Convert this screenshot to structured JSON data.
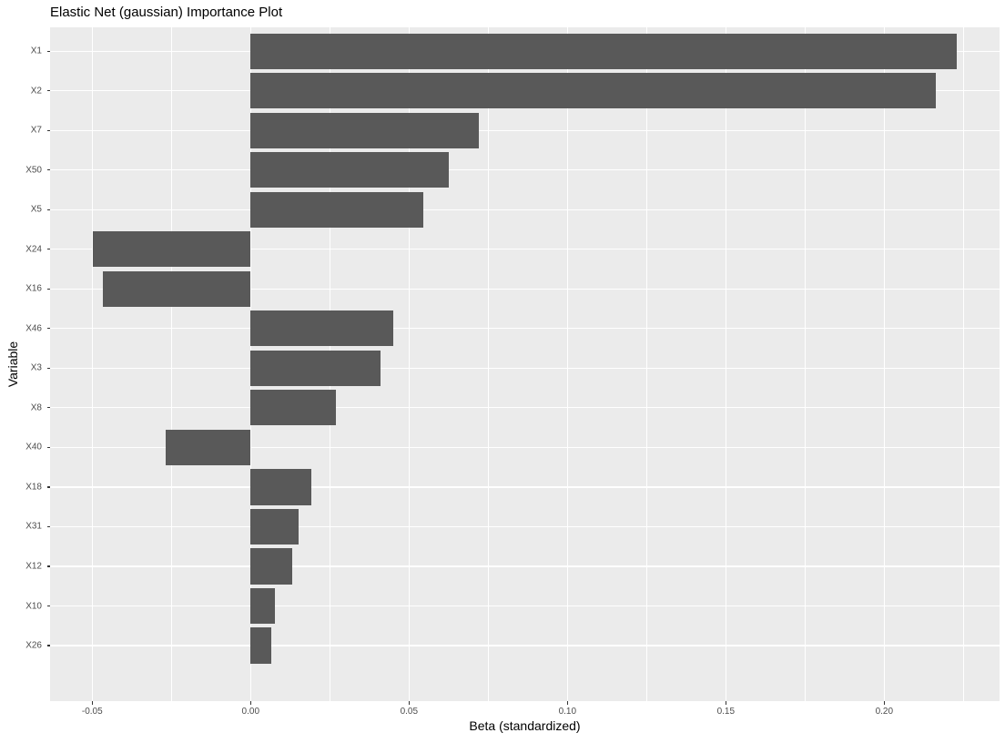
{
  "chart_data": {
    "type": "bar",
    "orientation": "horizontal",
    "title": "Elastic Net (gaussian) Importance Plot",
    "xlabel": "Beta (standardized)",
    "ylabel": "Variable",
    "categories_top_to_bottom": [
      "X1",
      "X2",
      "X7",
      "X50",
      "X5",
      "X24",
      "X16",
      "X46",
      "X3",
      "X8",
      "X40",
      "X18",
      "X31",
      "X12",
      "X10",
      "X26"
    ],
    "values": [
      0.2228,
      0.2163,
      0.0719,
      0.0625,
      0.0544,
      -0.0497,
      -0.0465,
      0.0451,
      0.0409,
      0.027,
      -0.0267,
      0.0193,
      0.0152,
      0.013,
      0.0078,
      0.0065
    ],
    "xlim": [
      -0.0633,
      0.2364
    ],
    "x_major_ticks": [
      -0.05,
      0.0,
      0.05,
      0.1,
      0.15,
      0.2
    ],
    "x_tick_labels": [
      "-0.05",
      "0.00",
      "0.05",
      "0.10",
      "0.15",
      "0.20"
    ],
    "x_minor_ticks": [
      -0.025,
      0.025,
      0.075,
      0.125,
      0.175,
      0.225
    ],
    "bar_width_fraction": 0.9,
    "category_expand": 0.6,
    "grid": true,
    "legend": "none",
    "colors": {
      "bar": "#595959",
      "panel_bg": "#EBEBEB",
      "grid": "#FFFFFF",
      "tick_text": "#4D4D4D",
      "tick_mark": "#333333",
      "title_text": "#000000"
    }
  }
}
